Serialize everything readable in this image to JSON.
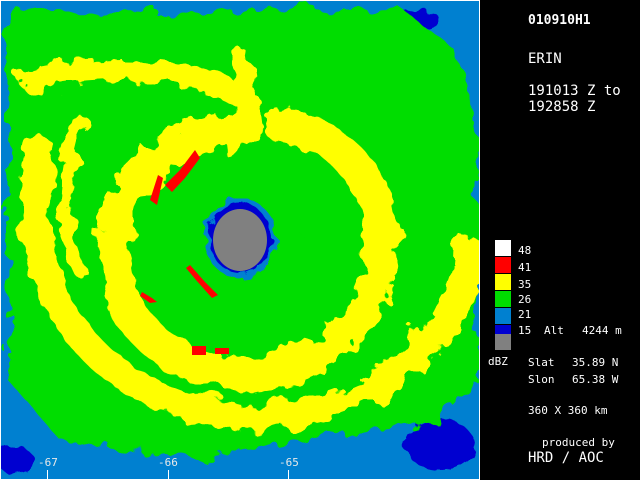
{
  "header": {
    "id": "010910H1",
    "storm": "ERIN",
    "time_line1": "191013 Z to",
    "time_line2": "192858 Z"
  },
  "legend": {
    "unit": "dBZ",
    "levels": [
      {
        "label": "48",
        "color": "#ffffff"
      },
      {
        "label": "41",
        "color": "#ff0000"
      },
      {
        "label": "35",
        "color": "#ffff00"
      },
      {
        "label": "26",
        "color": "#00dd00"
      },
      {
        "label": "21",
        "color": "#0080d0"
      },
      {
        "label": "15",
        "color": "#0000d0"
      },
      {
        "label": "",
        "color": "#808080"
      }
    ],
    "alt_label": "Alt",
    "alt_value": "4244 m"
  },
  "position": {
    "slat_label": "Slat",
    "slat_value": "35.89 N",
    "slon_label": "Slon",
    "slon_value": "65.38 W"
  },
  "domain_size": "360 X 360 km",
  "credit": {
    "line1": "produced by",
    "line2": "HRD / AOC"
  },
  "longitude_labels": [
    "-67",
    "-66",
    "-65"
  ],
  "colors": {
    "eye": "#808080",
    "weak": "#0000d0",
    "light": "#0080d0",
    "moderate": "#00dd00",
    "heavy": "#ffff00",
    "intense": "#ff0000"
  }
}
